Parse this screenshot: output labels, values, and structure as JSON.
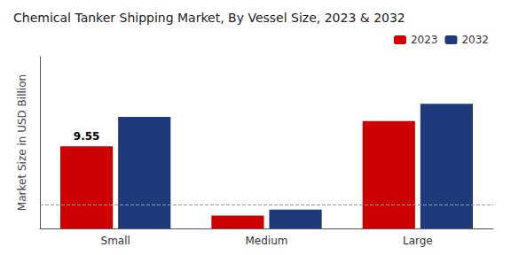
{
  "chart_data": {
    "type": "bar",
    "title": "Chemical Tanker Shipping Market, By Vessel Size, 2023 & 2032",
    "ylabel": "Market Size in USD Billion",
    "categories": [
      "Small",
      "Medium",
      "Large"
    ],
    "series": [
      {
        "name": "2023",
        "color": "#cc0000",
        "values": [
          9.55,
          1.5,
          12.5
        ]
      },
      {
        "name": "2032",
        "color": "#1f3a7a",
        "values": [
          13.0,
          2.2,
          14.5
        ]
      }
    ],
    "annotations": [
      {
        "series": "2023",
        "category": "Small",
        "text": "9.55"
      }
    ],
    "reference_line": 2.8,
    "ylim": [
      0,
      20
    ],
    "yticks": [],
    "tick_labels": "x",
    "grid": false,
    "legend": "upper right"
  }
}
